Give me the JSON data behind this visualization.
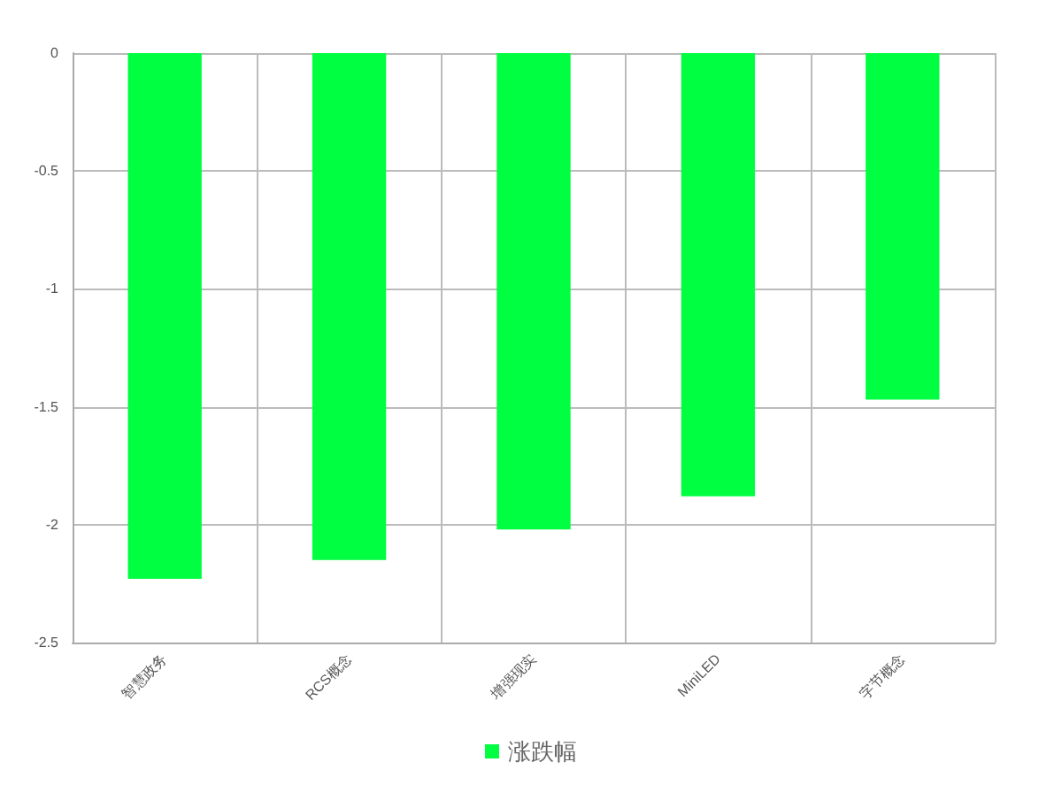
{
  "chart_data": {
    "type": "bar",
    "categories": [
      "智慧政务",
      "RCS概念",
      "增强现实",
      "MiniLED",
      "字节概念"
    ],
    "series": [
      {
        "name": "涨跌幅",
        "color": "#00ff40",
        "values": [
          -2.23,
          -2.15,
          -2.02,
          -1.88,
          -1.47
        ]
      }
    ],
    "ylim": [
      -2.5,
      0
    ],
    "yticks": [
      -2.5,
      -2,
      -1.5,
      -1,
      -0.5,
      0
    ],
    "grid": true,
    "legend": "bottom"
  }
}
